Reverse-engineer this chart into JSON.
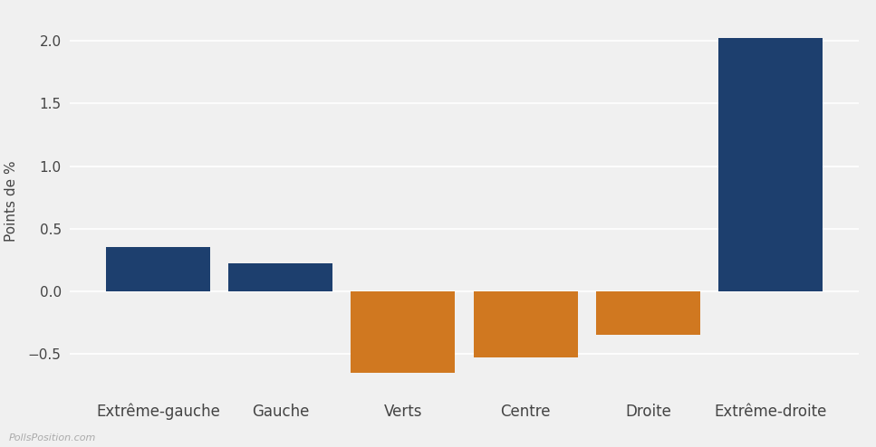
{
  "categories": [
    "Extrême-gauche",
    "Gauche",
    "Verts",
    "Centre",
    "Droite",
    "Extrême-droite"
  ],
  "values": [
    0.35,
    0.22,
    -0.65,
    -0.53,
    -0.35,
    2.02
  ],
  "bar_colors": [
    "#1d3f6e",
    "#1d3f6e",
    "#d07820",
    "#d07820",
    "#d07820",
    "#1d3f6e"
  ],
  "ylabel": "Points de %",
  "yticks": [
    -0.5,
    0.0,
    0.5,
    1.0,
    1.5,
    2.0
  ],
  "ylim": [
    -0.78,
    2.22
  ],
  "background_color": "#f0f0f0",
  "grid_color": "#ffffff",
  "watermark": "PollsPosition.com",
  "bar_width": 0.85,
  "tick_color": "#444444",
  "tick_fontsize": 11,
  "xlabel_fontsize": 12,
  "ylabel_fontsize": 11
}
